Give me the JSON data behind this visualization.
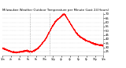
{
  "title": "Milwaukee Weather Outdoor Temperature per Minute (Last 24 Hours)",
  "line_color": "#ff0000",
  "background_color": "#ffffff",
  "grid_color": "#bbbbbb",
  "vline_color": "#999999",
  "y_min": 20,
  "y_max": 72,
  "y_ticks": [
    25,
    30,
    35,
    40,
    45,
    50,
    55,
    60,
    65,
    70
  ],
  "num_points": 1440,
  "temperature_profile": [
    [
      0,
      29
    ],
    [
      60,
      27
    ],
    [
      120,
      25
    ],
    [
      200,
      24
    ],
    [
      280,
      25
    ],
    [
      350,
      26
    ],
    [
      390,
      25
    ],
    [
      420,
      25
    ],
    [
      450,
      26
    ],
    [
      470,
      27
    ],
    [
      490,
      28
    ],
    [
      520,
      30
    ],
    [
      560,
      34
    ],
    [
      600,
      38
    ],
    [
      630,
      42
    ],
    [
      660,
      47
    ],
    [
      690,
      52
    ],
    [
      720,
      56
    ],
    [
      750,
      60
    ],
    [
      780,
      63
    ],
    [
      810,
      65
    ],
    [
      840,
      67
    ],
    [
      860,
      69
    ],
    [
      880,
      70
    ],
    [
      900,
      68
    ],
    [
      920,
      65
    ],
    [
      950,
      61
    ],
    [
      980,
      57
    ],
    [
      1010,
      53
    ],
    [
      1040,
      49
    ],
    [
      1080,
      45
    ],
    [
      1120,
      42
    ],
    [
      1160,
      40
    ],
    [
      1200,
      38
    ],
    [
      1260,
      36
    ],
    [
      1320,
      34
    ],
    [
      1380,
      33
    ],
    [
      1440,
      32
    ]
  ],
  "vline1": 390,
  "vline2": 670,
  "x_tick_positions": [
    0,
    120,
    240,
    360,
    480,
    600,
    720,
    840,
    960,
    1080,
    1200,
    1320,
    1440
  ],
  "x_tick_labels": [
    "12a",
    "2a",
    "4a",
    "6a",
    "8a",
    "10a",
    "12p",
    "2p",
    "4p",
    "6p",
    "8p",
    "10p",
    "12a"
  ]
}
